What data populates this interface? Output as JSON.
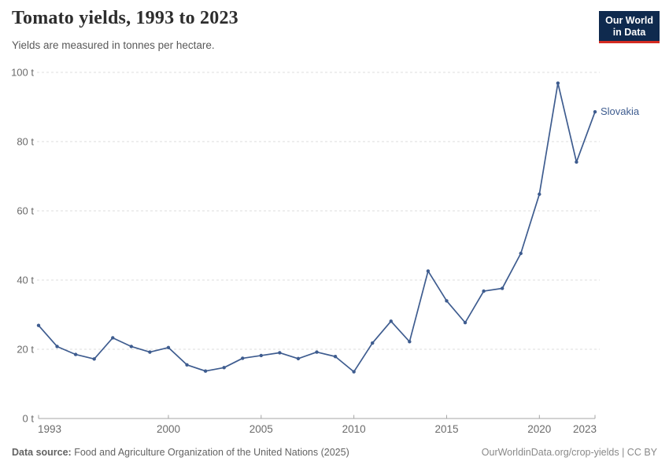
{
  "header": {
    "title": "Tomato yields, 1993 to 2023",
    "subtitle": "Yields are measured in tonnes per hectare.",
    "logo": {
      "line1": "Our World",
      "line2": "in Data",
      "bg_color": "#0f2a4e",
      "accent_color": "#d42b21"
    }
  },
  "chart_data": {
    "type": "line",
    "title": "Tomato yields, 1993 to 2023",
    "subtitle": "Yields are measured in tonnes per hectare.",
    "unit": "tonnes per hectare",
    "xlabel": "",
    "ylabel": "",
    "x": [
      1993,
      1994,
      1995,
      1996,
      1997,
      1998,
      1999,
      2000,
      2001,
      2002,
      2003,
      2004,
      2005,
      2006,
      2007,
      2008,
      2009,
      2010,
      2011,
      2012,
      2013,
      2014,
      2015,
      2016,
      2017,
      2018,
      2019,
      2020,
      2021,
      2022,
      2023
    ],
    "series": [
      {
        "name": "Slovakia",
        "color": "#3E5C8F",
        "values": [
          26.9,
          20.8,
          18.5,
          17.2,
          23.3,
          20.8,
          19.2,
          20.5,
          15.5,
          13.7,
          14.7,
          17.4,
          18.2,
          19.0,
          17.3,
          19.2,
          17.9,
          13.5,
          21.8,
          28.1,
          22.2,
          42.6,
          34.0,
          27.7,
          36.8,
          37.6,
          47.7,
          64.8,
          96.9,
          74.1,
          88.6
        ]
      }
    ],
    "ylim": [
      0,
      100
    ],
    "yticks": [
      0,
      20,
      40,
      60,
      80,
      100
    ],
    "ytick_labels": [
      "0 t",
      "20 t",
      "40 t",
      "60 t",
      "80 t",
      "100 t"
    ],
    "xticks": [
      1993,
      2000,
      2005,
      2010,
      2015,
      2020,
      2023
    ],
    "xtick_labels": [
      "1993",
      "2000",
      "2005",
      "2010",
      "2015",
      "2020",
      "2023"
    ],
    "grid": "dashed-horizontal",
    "legend": "end-of-line-label",
    "colors": {
      "gridline": "#dcdcdc",
      "axis": "#a5a5a5",
      "tick_label": "#6b6b6b"
    }
  },
  "footer": {
    "source_label": "Data source:",
    "source_text": "Food and Agriculture Organization of the United Nations (2025)",
    "credit": "OurWorldinData.org/crop-yields | CC BY"
  }
}
